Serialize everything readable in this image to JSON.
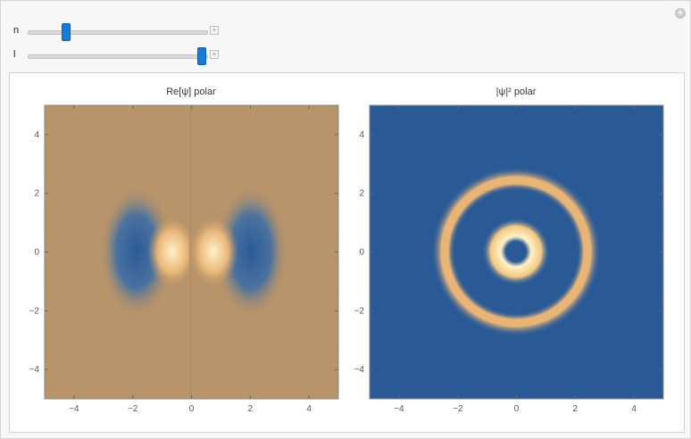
{
  "controls": {
    "add_icon": "circle-plus-icon",
    "sliders": [
      {
        "label": "n",
        "value_fraction": 0.21,
        "plus_icon": "plus-icon"
      },
      {
        "label": "l",
        "value_fraction": 0.97,
        "plus_icon": "plus-icon"
      }
    ]
  },
  "plots": [
    {
      "title": "Re[ψ] polar",
      "background_color": "#b8946a",
      "x_ticks": [
        "-4",
        "-2",
        "0",
        "2",
        "4"
      ],
      "y_ticks": [
        "4",
        "2",
        "0",
        "-2",
        "-4"
      ]
    },
    {
      "title": "|ψ|² polar",
      "background_color": "#2a5a96",
      "x_ticks": [
        "-4",
        "-2",
        "0",
        "2",
        "4"
      ],
      "y_ticks": [
        "4",
        "2",
        "0",
        "-2",
        "-4"
      ]
    }
  ],
  "colors": {
    "peak": "#fff2c8",
    "warm": "#e9b577",
    "cool": "#2a5a96",
    "neutral": "#b8946a"
  }
}
